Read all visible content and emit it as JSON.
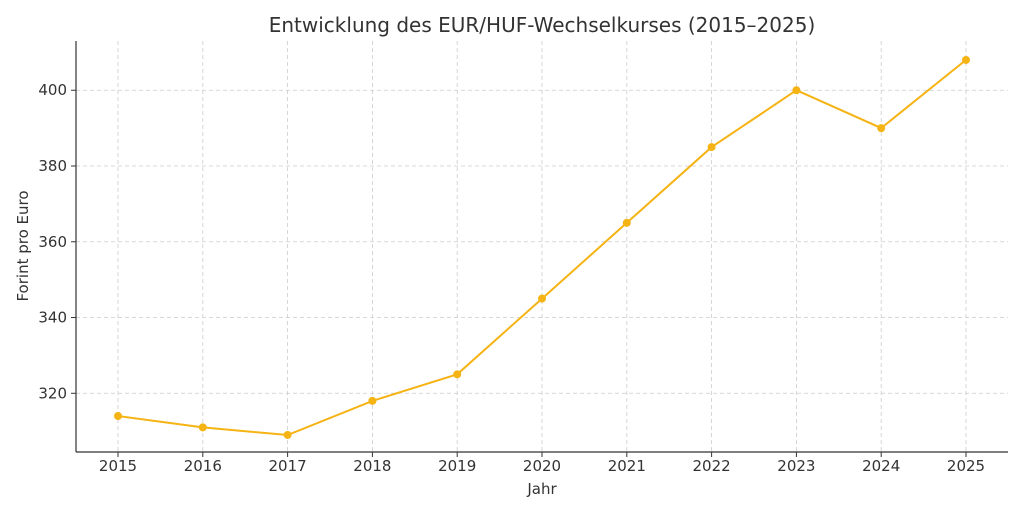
{
  "chart_data": {
    "type": "line",
    "title": "Entwicklung des EUR/HUF-Wechselkurses (2015–2025)",
    "xlabel": "Jahr",
    "ylabel": "Forint pro Euro",
    "x": [
      "2015",
      "2016",
      "2017",
      "2018",
      "2019",
      "2020",
      "2021",
      "2022",
      "2023",
      "2024",
      "2025"
    ],
    "series": [
      {
        "values": [
          314,
          311,
          309,
          318,
          325,
          345,
          365,
          385,
          400,
          390,
          408
        ]
      }
    ],
    "yticks": [
      320,
      340,
      360,
      380,
      400
    ],
    "ylim": [
      304.5,
      413
    ],
    "grid": true,
    "color": "#f5b314"
  }
}
